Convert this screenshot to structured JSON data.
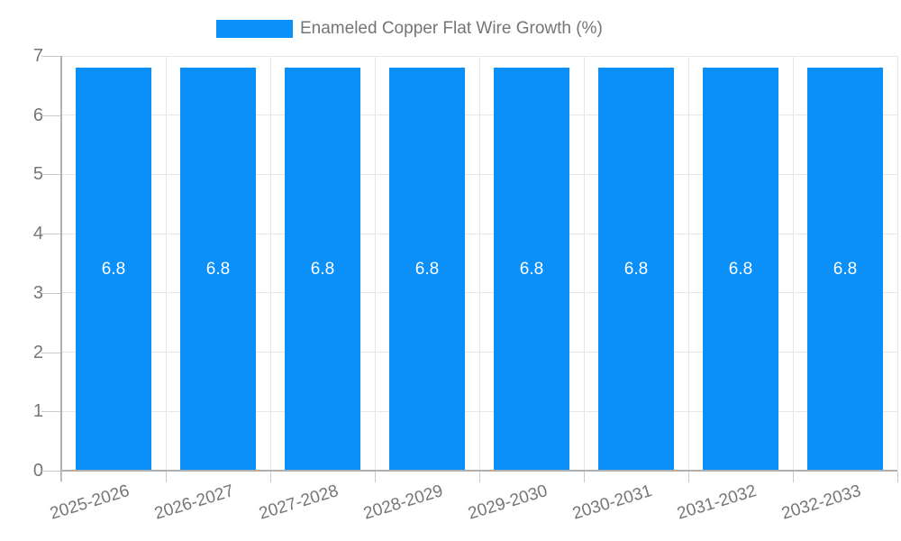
{
  "chart_data": {
    "type": "bar",
    "title": "",
    "categories": [
      "2025-2026",
      "2026-2027",
      "2027-2028",
      "2028-2029",
      "2029-2030",
      "2030-2031",
      "2031-2032",
      "2032-2033"
    ],
    "series": [
      {
        "name": "Enameled Copper Flat Wire Growth (%)",
        "values": [
          6.8,
          6.8,
          6.8,
          6.8,
          6.8,
          6.8,
          6.8,
          6.8
        ],
        "bar_labels": [
          "6.8",
          "6.8",
          "6.8",
          "6.8",
          "6.8",
          "6.8",
          "6.8",
          "6.8"
        ]
      }
    ],
    "xlabel": "",
    "ylabel": "",
    "ylim": [
      0,
      7
    ],
    "yticks": [
      0,
      1,
      2,
      3,
      4,
      5,
      6,
      7
    ],
    "grid": true,
    "legend_position": "top",
    "colors": {
      "bar": "#0a90f8",
      "bar_label": "#ffffff",
      "axis_text": "#757575",
      "gridline": "#e6e6e6",
      "axis_line": "#b0b0b0",
      "background": "#ffffff"
    }
  },
  "legend": {
    "label": "Enameled Copper Flat Wire Growth (%)"
  }
}
